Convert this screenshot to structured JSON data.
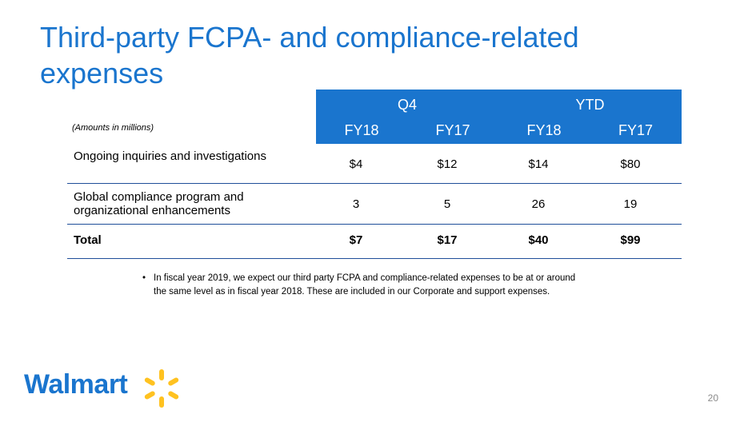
{
  "slide": {
    "title": "Third-party FCPA- and compliance-related expenses",
    "amounts_note": "(Amounts in millions)",
    "page_number": "20"
  },
  "table": {
    "groups": [
      "Q4",
      "YTD"
    ],
    "periods": [
      "FY18",
      "FY17",
      "FY18",
      "FY17"
    ],
    "rows": [
      {
        "label": "Ongoing inquiries and investigations",
        "values": [
          "$4",
          "$12",
          "$14",
          "$80"
        ]
      },
      {
        "label": "Global compliance program and organizational enhancements",
        "values": [
          "3",
          "5",
          "26",
          "19"
        ]
      },
      {
        "label": "Total",
        "values": [
          "$7",
          "$17",
          "$40",
          "$99"
        ]
      }
    ]
  },
  "bullet": {
    "marker": "•",
    "text": "In fiscal year 2019, we expect our third party FCPA and compliance-related expenses to be at or around the same level as in fiscal year 2018. These are included in our Corporate and support expenses."
  },
  "logo": {
    "wordmark": "Walmart",
    "icon": "spark-icon",
    "colors": {
      "wordmark": "#1a75ce",
      "spark": "#ffc220"
    }
  },
  "colors": {
    "title": "#1a75ce",
    "header_fill": "#1a75ce",
    "row_rule": "#1f4e99"
  }
}
